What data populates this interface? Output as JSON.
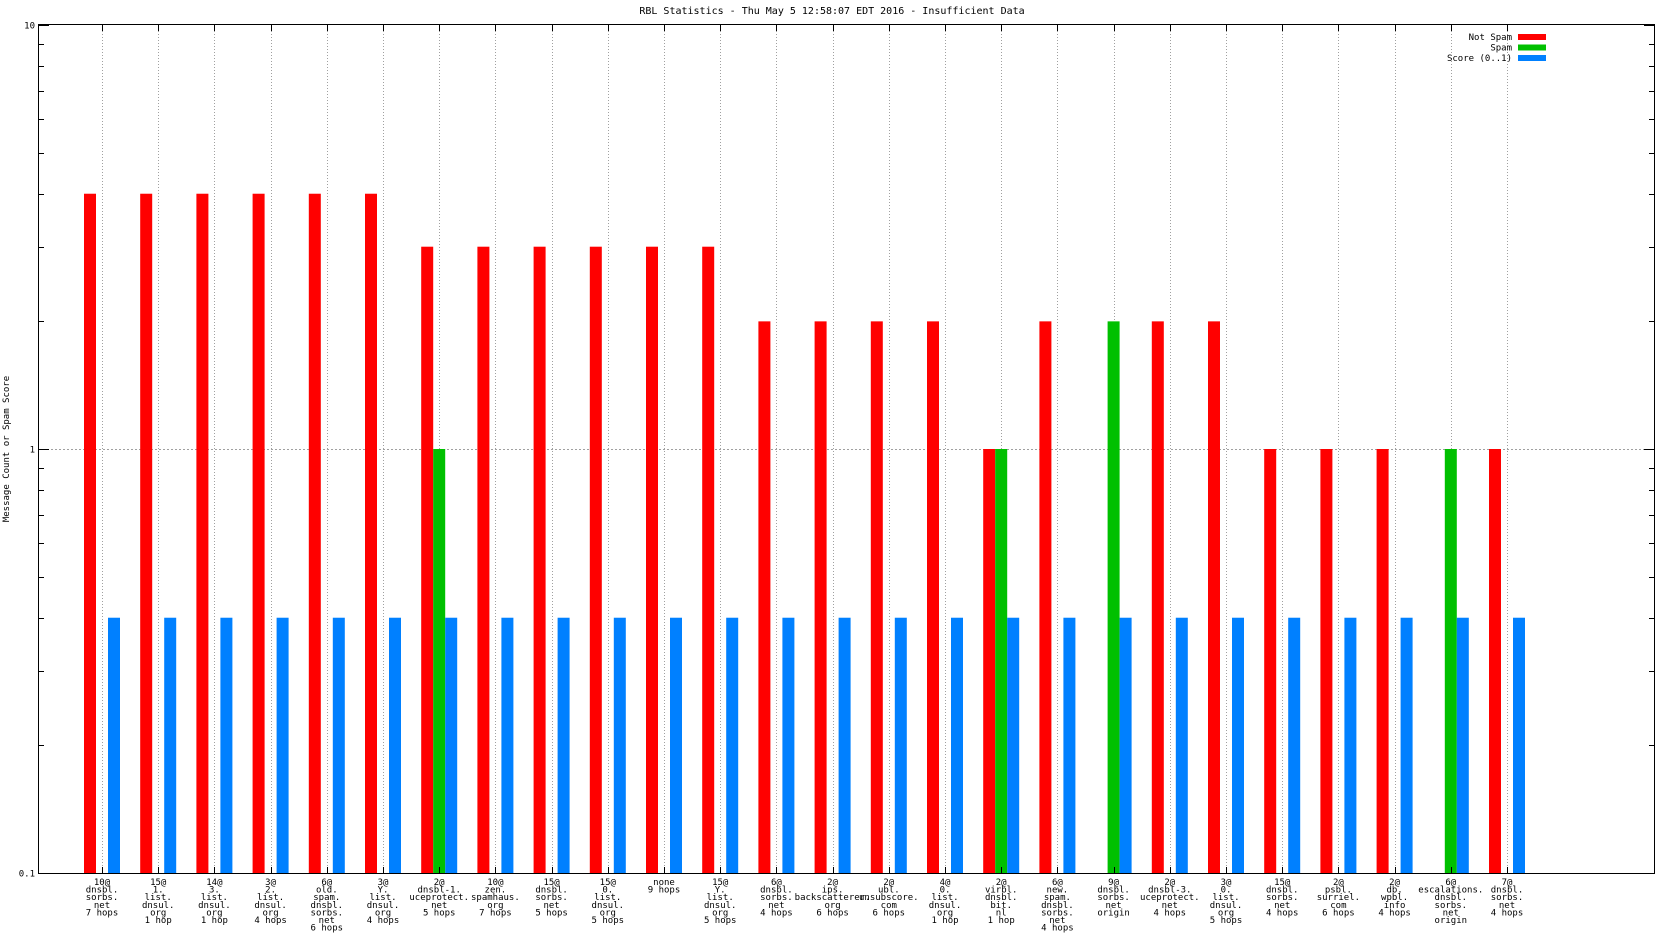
{
  "chart_data": {
    "type": "bar",
    "title": "RBL Statistics - Thu May  5 12:58:07 EDT 2016 - Insufficient Data",
    "xlabel": "",
    "ylabel": "Message Count or Spam Score",
    "yscale": "log",
    "ylim": [
      0.1,
      10
    ],
    "yticks": [
      {
        "value": 10,
        "label": "10"
      },
      {
        "value": 1,
        "label": "1"
      },
      {
        "value": 0.1,
        "label": "0.1"
      }
    ],
    "grid": true,
    "legend_position": "top-right",
    "categories": [
      [
        "10@",
        "dnsbl.",
        "sorbs.",
        "net",
        "7 hops"
      ],
      [
        "15@",
        "1.",
        "list.",
        "dnsul.",
        "org",
        "1 hop"
      ],
      [
        "14@",
        "3.",
        "list.",
        "dnsul.",
        "org",
        "1 hop"
      ],
      [
        "3@",
        "2.",
        "list.",
        "dnsul.",
        "org",
        "4 hops"
      ],
      [
        "6@",
        "old.",
        "spam.",
        "dnsbl.",
        "sorbs.",
        "net",
        "6 hops"
      ],
      [
        "3@",
        "Y.",
        "list.",
        "dnsul.",
        "org",
        "4 hops"
      ],
      [
        "2@",
        "dnsbl-1.",
        "uceprotect.",
        "net",
        "5 hops"
      ],
      [
        "10@",
        "zen.",
        "spamhaus.",
        "org",
        "7 hops"
      ],
      [
        "15@",
        "dnsbl.",
        "sorbs.",
        "net",
        "5 hops"
      ],
      [
        "15@",
        "0.",
        "list.",
        "dnsul.",
        "org",
        "5 hops"
      ],
      [
        "none",
        "9 hops"
      ],
      [
        "15@",
        "Y.",
        "list.",
        "dnsul.",
        "org",
        "5 hops"
      ],
      [
        "6@",
        "dnsbl.",
        "sorbs.",
        "net",
        "4 hops"
      ],
      [
        "2@",
        "ips.",
        "backscatterer.",
        "org",
        "6 hops"
      ],
      [
        "2@",
        "ubl.",
        "unsubscore.",
        "com",
        "6 hops"
      ],
      [
        "4@",
        "0.",
        "list.",
        "dnsul.",
        "org",
        "1 hop"
      ],
      [
        "2@",
        "virbl.",
        "dnsbl.",
        "bit.",
        "nl",
        "1 hop"
      ],
      [
        "6@",
        "new.",
        "spam.",
        "dnsbl.",
        "sorbs.",
        "net",
        "4 hops"
      ],
      [
        "9@",
        "dnsbl.",
        "sorbs.",
        "net",
        "origin"
      ],
      [
        "2@",
        "dnsbl-3.",
        "uceprotect.",
        "net",
        "4 hops"
      ],
      [
        "3@",
        "0.",
        "list.",
        "dnsul.",
        "org",
        "5 hops"
      ],
      [
        "15@",
        "dnsbl.",
        "sorbs.",
        "net",
        "4 hops"
      ],
      [
        "2@",
        "psbl.",
        "surriel.",
        "com",
        "6 hops"
      ],
      [
        "2@",
        "db.",
        "wpbl.",
        "info",
        "4 hops"
      ],
      [
        "6@",
        "escalations.",
        "dnsbl.",
        "sorbs.",
        "net",
        "origin"
      ],
      [
        "7@",
        "dnsbl.",
        "sorbs.",
        "net",
        "4 hops"
      ]
    ],
    "series": [
      {
        "name": "Not Spam",
        "color": "#ff0000",
        "values": [
          4,
          4,
          4,
          4,
          4,
          4,
          3,
          3,
          3,
          3,
          3,
          3,
          2,
          2,
          2,
          2,
          1,
          2,
          null,
          2,
          2,
          1,
          1,
          1,
          null,
          1
        ]
      },
      {
        "name": "Spam",
        "color": "#00c000",
        "values": [
          null,
          null,
          null,
          null,
          null,
          null,
          1,
          null,
          null,
          null,
          null,
          null,
          null,
          null,
          null,
          null,
          1,
          null,
          2,
          null,
          null,
          null,
          null,
          null,
          1,
          null
        ]
      },
      {
        "name": "Score (0..1)",
        "color": "#0080ff",
        "values": [
          0.4,
          0.4,
          0.4,
          0.4,
          0.4,
          0.4,
          0.4,
          0.4,
          0.4,
          0.4,
          0.4,
          0.4,
          0.4,
          0.4,
          0.4,
          0.4,
          0.4,
          0.4,
          0.4,
          0.4,
          0.4,
          0.4,
          0.4,
          0.4,
          0.4,
          0.4
        ]
      }
    ]
  }
}
